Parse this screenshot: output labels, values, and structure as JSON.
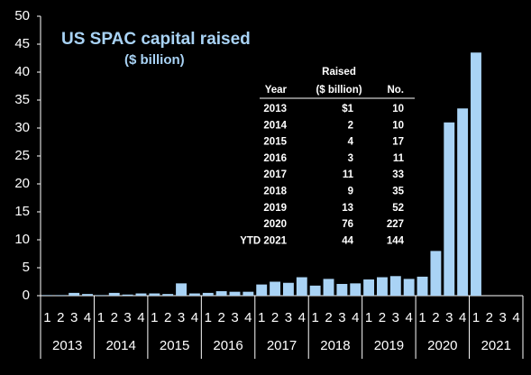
{
  "chart_data": {
    "type": "bar",
    "title": "US SPAC capital raised",
    "subtitle": "($ billion)",
    "categories": [
      "1",
      "2",
      "3",
      "4",
      "1",
      "2",
      "3",
      "4",
      "1",
      "2",
      "3",
      "4",
      "1",
      "2",
      "3",
      "4",
      "1",
      "2",
      "3",
      "4",
      "1",
      "2",
      "3",
      "4",
      "1",
      "2",
      "3",
      "4",
      "1",
      "2",
      "3",
      "4",
      "1",
      "2",
      "3",
      "4"
    ],
    "year_labels": [
      "2013",
      "2014",
      "2015",
      "2016",
      "2017",
      "2018",
      "2019",
      "2020",
      "2021"
    ],
    "values": [
      0.1,
      0.1,
      0.5,
      0.3,
      0.1,
      0.5,
      0.2,
      0.4,
      0.4,
      0.3,
      2.2,
      0.4,
      0.5,
      0.8,
      0.7,
      0.7,
      2.0,
      2.5,
      2.3,
      3.3,
      1.8,
      3.0,
      2.1,
      2.2,
      2.9,
      3.3,
      3.5,
      3.0,
      3.4,
      8.0,
      31.0,
      33.5,
      43.5,
      null,
      null,
      null
    ],
    "color": "#a9d3f5",
    "ylim": [
      0,
      50
    ],
    "yticks": [
      0,
      5,
      10,
      15,
      20,
      25,
      30,
      35,
      40,
      45,
      50
    ],
    "grid": false,
    "table": {
      "header": [
        [
          "Year"
        ],
        [
          "Raised",
          "($ billion)"
        ],
        [
          "No."
        ]
      ],
      "rows": [
        [
          "2013",
          "$1",
          "10"
        ],
        [
          "2014",
          "2",
          "10"
        ],
        [
          "2015",
          "4",
          "17"
        ],
        [
          "2016",
          "3",
          "11"
        ],
        [
          "2017",
          "11",
          "33"
        ],
        [
          "2018",
          "9",
          "35"
        ],
        [
          "2019",
          "13",
          "52"
        ],
        [
          "2020",
          "76",
          "227"
        ],
        [
          "YTD 2021",
          "44",
          "144"
        ]
      ]
    }
  }
}
